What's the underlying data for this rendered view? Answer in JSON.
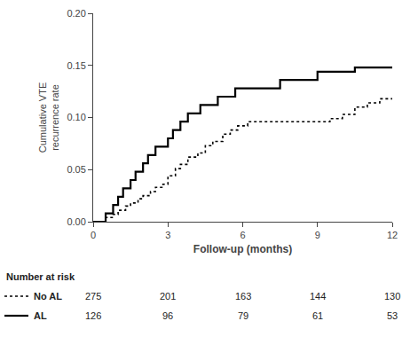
{
  "chart_data": {
    "type": "line",
    "xlabel": "Follow-up (months)",
    "ylabel": "Cumulative VTE\nrecurrence rate",
    "xlim": [
      0,
      12
    ],
    "ylim": [
      0,
      0.2
    ],
    "xticks": [
      0,
      3,
      6,
      9,
      12
    ],
    "yticks": [
      {
        "value": 0.0,
        "label": "0.00"
      },
      0.05,
      {
        "value": 0.1,
        "label": "0.10"
      },
      0.15,
      {
        "value": 0.2,
        "label": "0.20"
      }
    ],
    "grid": false,
    "at_risk_label": "Number at risk",
    "at_risk_x": [
      0,
      3,
      6,
      9,
      12
    ],
    "series": [
      {
        "name": "AL",
        "color": "#000000",
        "line_style": "solid",
        "x": [
          0,
          0.5,
          0.5,
          0.8,
          0.8,
          1.0,
          1.0,
          1.2,
          1.2,
          1.5,
          1.5,
          1.7,
          1.7,
          2.0,
          2.0,
          2.2,
          2.2,
          2.5,
          2.5,
          2.8,
          2.8,
          3.0,
          3.0,
          3.2,
          3.2,
          3.5,
          3.5,
          3.8,
          3.8,
          4.0,
          4.0,
          4.3,
          4.3,
          4.7,
          4.7,
          5.0,
          5.0,
          5.3,
          5.3,
          5.7,
          5.7,
          6.0,
          6.0,
          6.5,
          6.5,
          7.0,
          7.0,
          7.5,
          7.5,
          8.0,
          8.0,
          9.0,
          9.0,
          9.5,
          9.5,
          10.5,
          10.5,
          12.0
        ],
        "values": [
          0.0,
          0.0,
          0.008,
          0.008,
          0.016,
          0.016,
          0.024,
          0.024,
          0.032,
          0.032,
          0.04,
          0.04,
          0.048,
          0.048,
          0.056,
          0.056,
          0.064,
          0.064,
          0.072,
          0.072,
          0.072,
          0.072,
          0.08,
          0.08,
          0.088,
          0.088,
          0.096,
          0.096,
          0.104,
          0.104,
          0.104,
          0.104,
          0.112,
          0.112,
          0.112,
          0.112,
          0.12,
          0.12,
          0.12,
          0.12,
          0.128,
          0.128,
          0.128,
          0.128,
          0.128,
          0.128,
          0.128,
          0.128,
          0.136,
          0.136,
          0.136,
          0.136,
          0.144,
          0.144,
          0.144,
          0.144,
          0.148,
          0.148
        ],
        "at_risk": [
          126,
          96,
          79,
          61,
          53
        ]
      },
      {
        "name": "No AL",
        "color": "#000000",
        "line_style": "dotted",
        "x": [
          0,
          0.5,
          0.5,
          0.8,
          0.8,
          1.0,
          1.0,
          1.3,
          1.3,
          1.5,
          1.5,
          1.8,
          1.8,
          2.0,
          2.0,
          2.3,
          2.3,
          2.5,
          2.5,
          2.8,
          2.8,
          3.0,
          3.0,
          3.3,
          3.3,
          3.5,
          3.5,
          3.8,
          3.8,
          4.2,
          4.2,
          4.5,
          4.5,
          4.8,
          4.8,
          5.2,
          5.2,
          5.5,
          5.5,
          5.8,
          5.8,
          6.2,
          6.2,
          7.0,
          7.0,
          9.5,
          9.5,
          10.0,
          10.0,
          10.5,
          10.5,
          11.0,
          11.0,
          11.5,
          11.5,
          12.0
        ],
        "values": [
          0.0,
          0.0,
          0.004,
          0.004,
          0.007,
          0.007,
          0.011,
          0.011,
          0.015,
          0.015,
          0.018,
          0.018,
          0.022,
          0.022,
          0.025,
          0.025,
          0.029,
          0.029,
          0.033,
          0.033,
          0.036,
          0.036,
          0.044,
          0.044,
          0.051,
          0.051,
          0.055,
          0.055,
          0.062,
          0.062,
          0.066,
          0.066,
          0.073,
          0.073,
          0.077,
          0.077,
          0.084,
          0.084,
          0.088,
          0.088,
          0.092,
          0.092,
          0.096,
          0.096,
          0.096,
          0.096,
          0.099,
          0.099,
          0.103,
          0.103,
          0.11,
          0.11,
          0.114,
          0.114,
          0.118,
          0.118
        ],
        "at_risk": [
          275,
          201,
          163,
          144,
          130
        ]
      }
    ]
  }
}
